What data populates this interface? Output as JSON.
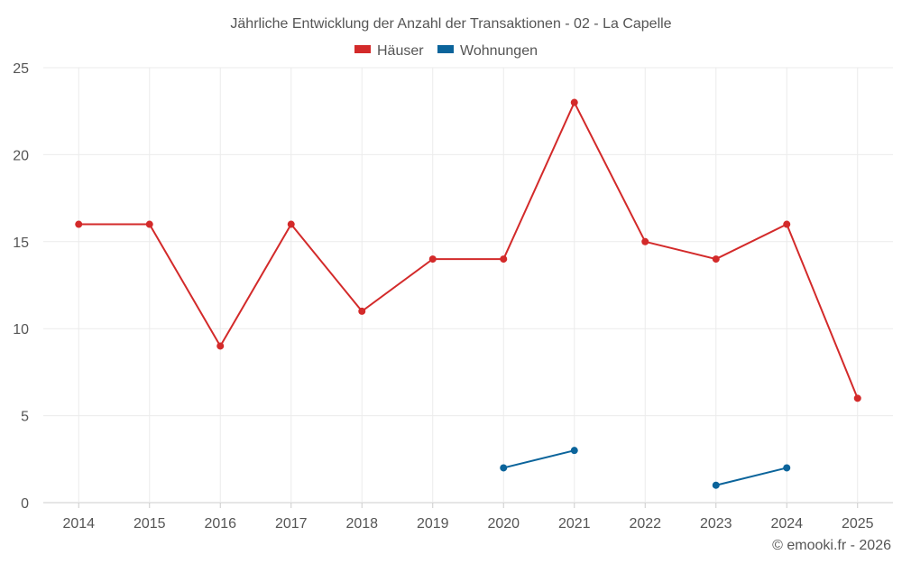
{
  "chart_data": {
    "type": "line",
    "title": "Jährliche Entwicklung der Anzahl der Transaktionen - 02 - La Capelle",
    "categories": [
      "2014",
      "2015",
      "2016",
      "2017",
      "2018",
      "2019",
      "2020",
      "2021",
      "2022",
      "2023",
      "2024",
      "2025"
    ],
    "ylim": [
      0,
      25
    ],
    "yticks": [
      0,
      5,
      10,
      15,
      20,
      25
    ],
    "grid": true,
    "legend_position": "top-center",
    "series": [
      {
        "name": "Häuser",
        "color": "#d32a2a",
        "values": [
          16,
          16,
          9,
          16,
          11,
          14,
          14,
          23,
          15,
          14,
          16,
          6
        ]
      },
      {
        "name": "Wohnungen",
        "color": "#0b649b",
        "values": [
          null,
          null,
          null,
          null,
          null,
          null,
          2,
          3,
          null,
          1,
          2,
          null
        ]
      }
    ],
    "credit": "© emooki.fr - 2026"
  }
}
